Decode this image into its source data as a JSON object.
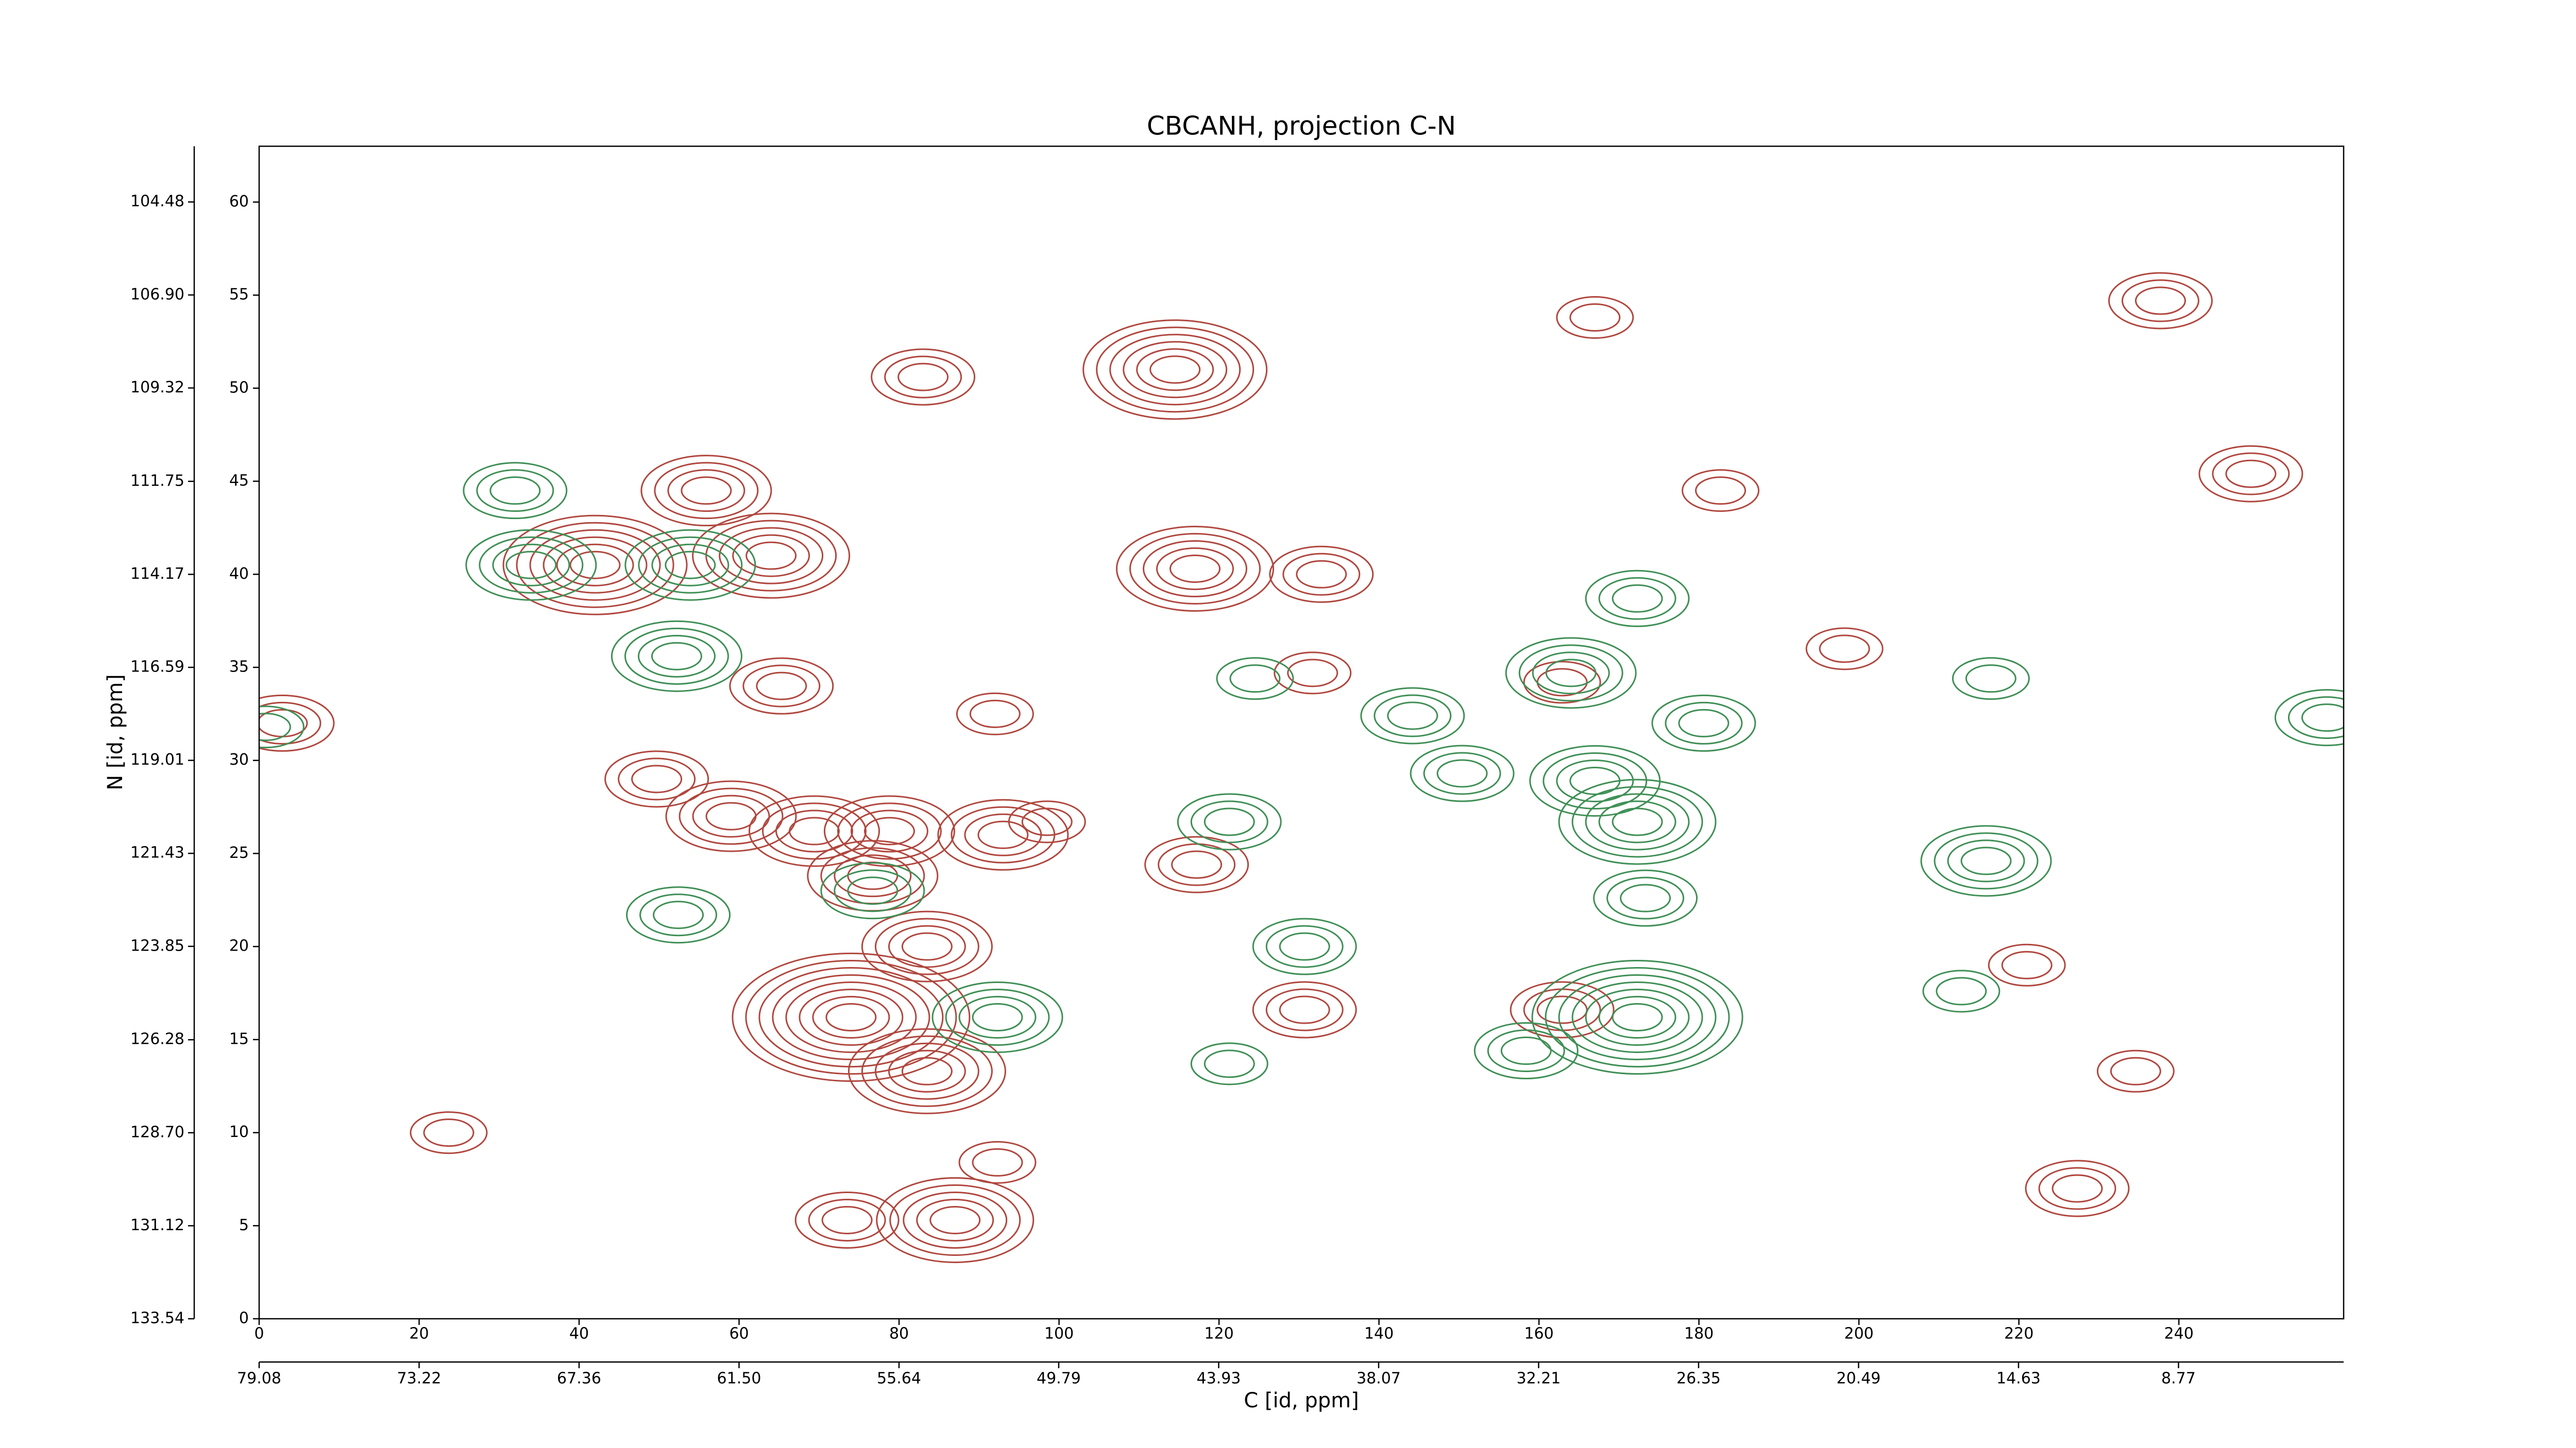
{
  "chart_data": {
    "type": "contour",
    "title": "CBCANH, projection C-N",
    "xlabel": "C [id, ppm]",
    "ylabel": "N [id, ppm]",
    "xlim": [
      0,
      260.6
    ],
    "xticks": [
      0,
      20,
      40,
      60,
      80,
      100,
      120,
      140,
      160,
      180,
      200,
      220,
      240
    ],
    "x2lim": [
      79.08,
      2.72
    ],
    "x2ticks": [
      79.08,
      73.22,
      67.36,
      {
        "value": 61.5,
        "label": "61.50"
      },
      55.64,
      49.79,
      43.93,
      38.07,
      32.21,
      26.35,
      20.49,
      14.63,
      8.77
    ],
    "ylim": [
      0,
      63
    ],
    "yticks": [
      0,
      5,
      10,
      15,
      20,
      25,
      30,
      35,
      40,
      45,
      50,
      55,
      60
    ],
    "y2lim": [
      133.54,
      103.03
    ],
    "y2ticks": [
      133.54,
      131.12,
      {
        "value": 128.7,
        "label": "128.70"
      },
      126.28,
      123.85,
      121.43,
      119.01,
      116.59,
      114.17,
      111.75,
      109.32,
      {
        "value": 106.9,
        "label": "106.90"
      },
      104.48
    ],
    "series": [
      {
        "color": "#b0473e",
        "x": [
          114.5,
          83,
          55.9,
          42,
          64,
          76.7,
          74,
          83.5,
          83.5,
          93,
          98.5,
          59,
          49.7,
          69.4,
          78.8,
          65.3,
          92,
          117,
          132.8,
          131.7,
          130.7,
          162.9,
          117.2,
          87,
          73.5,
          249,
          237.7,
          227.3,
          221,
          23.7,
          92.3,
          167,
          182.7,
          2.9,
          162.9,
          198.2,
          234.6
        ],
        "y": [
          51,
          50.6,
          44.5,
          40.5,
          41,
          23.8,
          16.2,
          20,
          13.3,
          26,
          26.7,
          27,
          29,
          26.2,
          26.2,
          34,
          32.5,
          40.3,
          40,
          34.7,
          16.6,
          16.6,
          24.4,
          5.3,
          5.3,
          45.4,
          54.7,
          7,
          19,
          10,
          8.4,
          53.8,
          44.5,
          32,
          34.2,
          36,
          13.3
        ],
        "levels": [
          6,
          3,
          4,
          6,
          5,
          4,
          8,
          4,
          5,
          4,
          2,
          4,
          3,
          4,
          4,
          3,
          2,
          5,
          3,
          2,
          3,
          3,
          3,
          5,
          3,
          3,
          3,
          3,
          2,
          2,
          2,
          2,
          2,
          3,
          2,
          2,
          2
        ]
      },
      {
        "color": "#3f8f55",
        "x": [
          32,
          34,
          53.9,
          52.2,
          52.4,
          76.7,
          92.3,
          121.3,
          130.7,
          144.2,
          150.4,
          164,
          172.3,
          167,
          172.3,
          180.6,
          173.3,
          172.3,
          158.4,
          215.9,
          212.8,
          258.5,
          0.8,
          121.3,
          124.5,
          216.5
        ],
        "y": [
          44.5,
          40.5,
          40.5,
          35.6,
          21.7,
          23,
          16.2,
          26.7,
          20,
          32.4,
          29.3,
          34.7,
          38.7,
          28.9,
          26.7,
          32,
          22.6,
          16.2,
          14.4,
          24.6,
          17.6,
          32.3,
          31.8,
          13.7,
          34.4,
          34.4
        ],
        "levels": [
          3,
          4,
          4,
          4,
          3,
          3,
          4,
          3,
          3,
          3,
          3,
          4,
          3,
          4,
          5,
          3,
          3,
          7,
          3,
          4,
          2,
          3,
          2,
          2,
          2,
          2
        ]
      }
    ]
  }
}
